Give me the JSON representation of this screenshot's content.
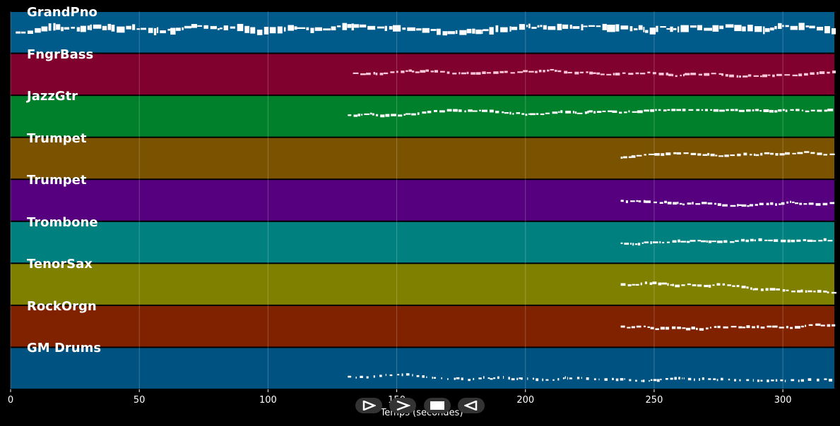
{
  "chart_data": {
    "type": "piano-roll",
    "title": "",
    "xlabel": "Temps (secondes)",
    "ylabel": "",
    "xlim": [
      0,
      320
    ],
    "xticks": [
      0,
      50,
      100,
      150,
      200,
      250,
      300
    ],
    "grid": true,
    "tracks": [
      {
        "name": "GrandPno",
        "color": "#005a8a",
        "note_start": 2,
        "note_end": 320
      },
      {
        "name": "FngrBass",
        "color": "#80002e",
        "note_start": 133,
        "note_end": 320
      },
      {
        "name": "JazzGtr",
        "color": "#00802a",
        "note_start": 131,
        "note_end": 320
      },
      {
        "name": "Trumpet",
        "color": "#7a5200",
        "note_start": 237,
        "note_end": 320
      },
      {
        "name": "Trumpet",
        "color": "#560080",
        "note_start": 237,
        "note_end": 320
      },
      {
        "name": "Trombone",
        "color": "#00807e",
        "note_start": 237,
        "note_end": 320
      },
      {
        "name": "TenorSax",
        "color": "#7f8000",
        "note_start": 237,
        "note_end": 320
      },
      {
        "name": "RockOrgn",
        "color": "#802100",
        "note_start": 237,
        "note_end": 320
      },
      {
        "name": "GM Drums",
        "color": "#005380",
        "note_start": 131,
        "note_end": 320
      }
    ]
  },
  "controls": [
    {
      "name": "play-button",
      "icon": "play-icon"
    },
    {
      "name": "forward-button",
      "icon": "forward-icon"
    },
    {
      "name": "stop-button",
      "icon": "stop-icon"
    },
    {
      "name": "back-button",
      "icon": "back-icon"
    }
  ]
}
